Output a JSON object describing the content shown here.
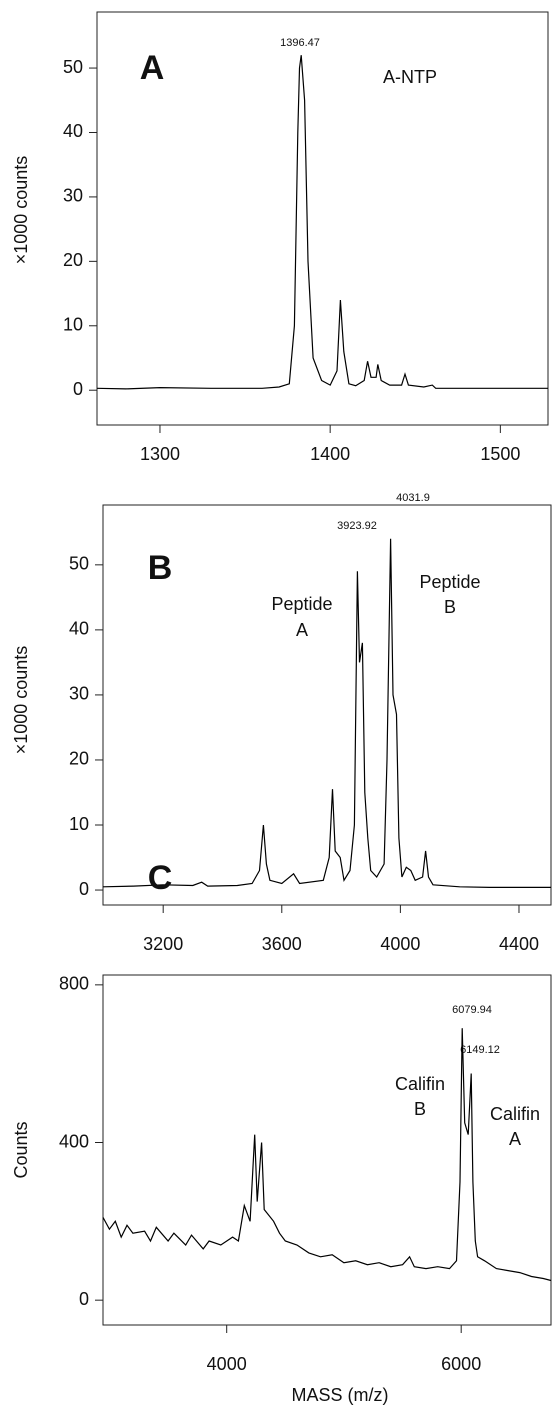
{
  "chart_data": [
    {
      "type": "line",
      "panel": "A",
      "ylabel": "×1000 counts",
      "annotations": [
        [
          "1396.47"
        ],
        [
          "A-NTP"
        ]
      ],
      "x": [
        1263,
        1280,
        1300,
        1330,
        1360,
        1370,
        1376,
        1379,
        1381,
        1382,
        1383,
        1385,
        1387,
        1390,
        1395,
        1400,
        1404,
        1406,
        1408,
        1411,
        1415,
        1420,
        1422,
        1424,
        1427,
        1428,
        1430,
        1435,
        1442,
        1444,
        1446,
        1455,
        1460,
        1462,
        1490,
        1528
      ],
      "series": [
        {
          "color": "#000000",
          "values": [
            0.3,
            0.2,
            0.4,
            0.3,
            0.3,
            0.5,
            1,
            10,
            40,
            50,
            52,
            45,
            20,
            5,
            1.5,
            0.8,
            3,
            14,
            6,
            1,
            0.7,
            1.5,
            4.5,
            2,
            2,
            4,
            1.5,
            0.8,
            0.8,
            2.5,
            0.8,
            0.5,
            0.8,
            0.3,
            0.3,
            0.3
          ]
        }
      ],
      "xlim": [
        1263,
        1528
      ],
      "ylim": [
        -5.4,
        58.7
      ],
      "xticks": [
        1300,
        1400,
        1500
      ],
      "yticks": [
        0,
        10,
        20,
        30,
        40,
        50
      ]
    },
    {
      "type": "line",
      "panel": "B",
      "ylabel": "×1000 counts",
      "annotations": [
        [
          "3923.92"
        ],
        [
          "4031.9"
        ],
        [
          "Peptide",
          "A"
        ],
        [
          "Peptide",
          "B"
        ]
      ],
      "x": [
        2997,
        3100,
        3200,
        3300,
        3330,
        3350,
        3450,
        3500,
        3525,
        3538,
        3548,
        3560,
        3600,
        3640,
        3660,
        3740,
        3760,
        3771,
        3780,
        3797,
        3810,
        3830,
        3845,
        3855,
        3862,
        3872,
        3880,
        3890,
        3900,
        3920,
        3945,
        3955,
        3967,
        3975,
        3987,
        3995,
        4005,
        4020,
        4035,
        4050,
        4075,
        4085,
        4095,
        4110,
        4200,
        4300,
        4508
      ],
      "series": [
        {
          "color": "#000000",
          "values": [
            0.5,
            0.6,
            0.8,
            0.7,
            1.2,
            0.6,
            0.7,
            1,
            3,
            10,
            4,
            1.5,
            1,
            2.5,
            1,
            1.5,
            5,
            15.5,
            6,
            5,
            1.5,
            3,
            10,
            49,
            35,
            38,
            15,
            8,
            3,
            2,
            4,
            20,
            54,
            30,
            27,
            8,
            2,
            3.5,
            3,
            1.5,
            2,
            6,
            2,
            0.8,
            0.5,
            0.4,
            0.4
          ]
        }
      ],
      "xlim": [
        2997,
        4508
      ],
      "ylim": [
        -2.3,
        59.2
      ],
      "xticks": [
        3200,
        3600,
        4000,
        4400
      ],
      "yticks": [
        0,
        10,
        20,
        30,
        40,
        50
      ]
    },
    {
      "type": "line",
      "panel": "C",
      "ylabel": "Counts",
      "xlabel": "MASS (m/z)",
      "annotations": [
        [
          "6079.94"
        ],
        [
          "6149.12"
        ],
        [
          "Califin",
          "B"
        ],
        [
          "Califin",
          "A"
        ]
      ],
      "x": [
        2945,
        3000,
        3050,
        3100,
        3150,
        3200,
        3300,
        3350,
        3400,
        3500,
        3550,
        3650,
        3700,
        3800,
        3850,
        3950,
        4050,
        4100,
        4150,
        4200,
        4239,
        4260,
        4298,
        4320,
        4400,
        4450,
        4500,
        4600,
        4700,
        4800,
        4900,
        5000,
        5100,
        5200,
        5300,
        5400,
        5500,
        5560,
        5600,
        5700,
        5800,
        5900,
        5960,
        5990,
        6009,
        6030,
        6060,
        6085,
        6100,
        6120,
        6140,
        6200,
        6300,
        6400,
        6500,
        6600,
        6700,
        6766
      ],
      "series": [
        {
          "color": "#000000",
          "values": [
            210,
            180,
            200,
            160,
            190,
            170,
            175,
            150,
            185,
            150,
            170,
            140,
            165,
            130,
            150,
            140,
            160,
            150,
            240,
            200,
            420,
            250,
            400,
            230,
            200,
            170,
            150,
            140,
            120,
            110,
            115,
            95,
            100,
            90,
            95,
            85,
            90,
            110,
            85,
            80,
            85,
            80,
            100,
            300,
            690,
            450,
            420,
            575,
            300,
            150,
            110,
            100,
            80,
            75,
            70,
            60,
            55,
            50
          ]
        }
      ],
      "xlim": [
        2945,
        6766
      ],
      "ylim": [
        -63,
        825
      ],
      "xticks": [
        4000,
        6000
      ],
      "yticks": [
        0,
        400,
        800
      ]
    }
  ]
}
